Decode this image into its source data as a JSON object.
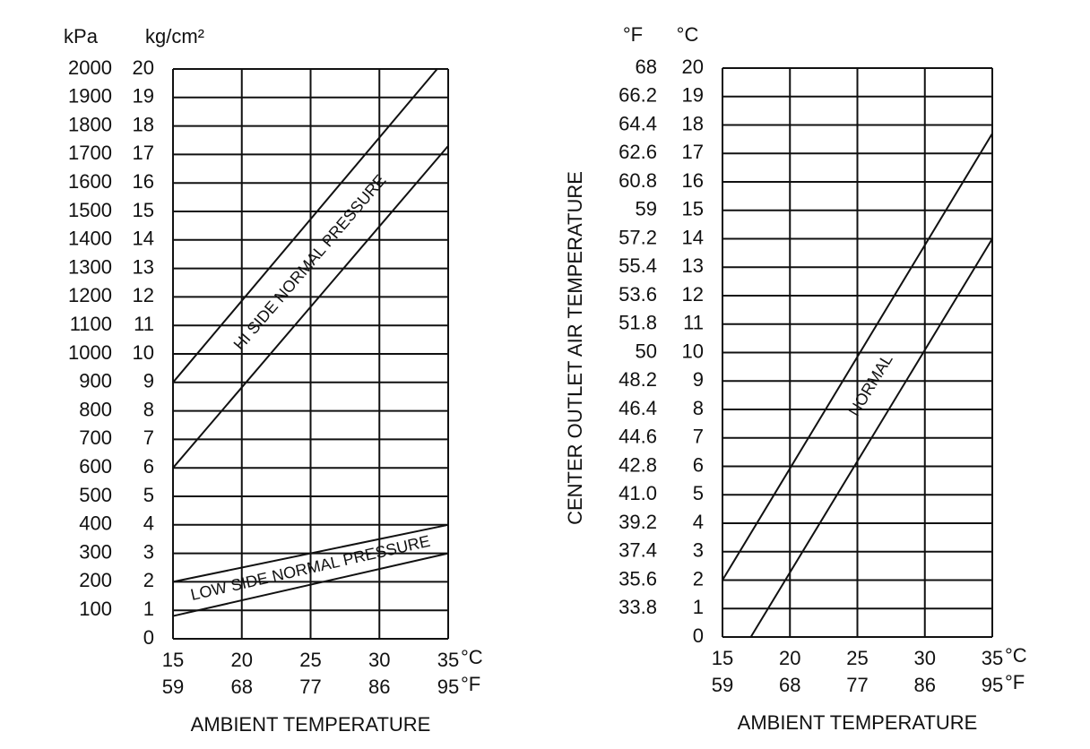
{
  "chart_data": [
    {
      "type": "band",
      "y2label": "kPa",
      "ylabel": "kg/cm²",
      "xlabel": "AMBIENT TEMPERATURE",
      "xunit": "°C",
      "x2unit": "°F",
      "xlim": [
        15,
        35
      ],
      "xticks": [
        15,
        20,
        25,
        30,
        35
      ],
      "x2lim": [
        59,
        95
      ],
      "x2ticks": [
        59,
        68,
        77,
        86,
        95
      ],
      "ylim": [
        0,
        20
      ],
      "yticks": [
        0,
        1,
        2,
        3,
        4,
        5,
        6,
        7,
        8,
        9,
        10,
        11,
        12,
        13,
        14,
        15,
        16,
        17,
        18,
        19,
        20
      ],
      "y2lim": [
        0,
        2000
      ],
      "y2ticks": [
        100,
        200,
        300,
        400,
        500,
        600,
        700,
        800,
        900,
        1000,
        1100,
        1200,
        1300,
        1400,
        1500,
        1600,
        1700,
        1800,
        1900,
        2000
      ],
      "grid": true,
      "color": "#000000",
      "series": [
        {
          "name": "HI SIDE NORMAL PRESSURE",
          "upper": {
            "x": [
              15,
              34.2
            ],
            "values": [
              9,
              20
            ]
          },
          "lower": {
            "x": [
              15,
              35
            ],
            "values": [
              6,
              17.3
            ]
          }
        },
        {
          "name": "LOW SIDE NORMAL PRESSURE",
          "upper": {
            "x": [
              15,
              35
            ],
            "values": [
              2,
              4
            ]
          },
          "lower": {
            "x": [
              15,
              35
            ],
            "values": [
              0.8,
              3
            ]
          }
        }
      ]
    },
    {
      "type": "band",
      "y2label": "°F",
      "ylabel": "°C",
      "yaxis_title": "CENTER OUTLET AIR TEMPERATURE",
      "xlabel": "AMBIENT TEMPERATURE",
      "xunit": "°C",
      "x2unit": "°F",
      "xlim": [
        15,
        35
      ],
      "xticks": [
        15,
        20,
        25,
        30,
        35
      ],
      "x2lim": [
        59,
        95
      ],
      "x2ticks": [
        59,
        68,
        77,
        86,
        95
      ],
      "ylim": [
        0,
        20
      ],
      "yticks": [
        0,
        1,
        2,
        3,
        4,
        5,
        6,
        7,
        8,
        9,
        10,
        11,
        12,
        13,
        14,
        15,
        16,
        17,
        18,
        19,
        20
      ],
      "y2lim": [
        32,
        68
      ],
      "y2ticks": [
        33.8,
        35.6,
        37.4,
        39.2,
        {
          "value": 41,
          "label": "41.0"
        },
        42.8,
        44.6,
        46.4,
        48.2,
        50,
        51.8,
        53.6,
        55.4,
        57.2,
        59,
        60.8,
        62.6,
        64.4,
        66.2,
        68
      ],
      "grid": true,
      "color": "#000000",
      "series": [
        {
          "name": "NORMAL",
          "upper": {
            "x": [
              15,
              35
            ],
            "values": [
              2,
              17.7
            ]
          },
          "lower": {
            "x": [
              17.1,
              35
            ],
            "values": [
              0,
              14
            ]
          }
        }
      ]
    }
  ]
}
